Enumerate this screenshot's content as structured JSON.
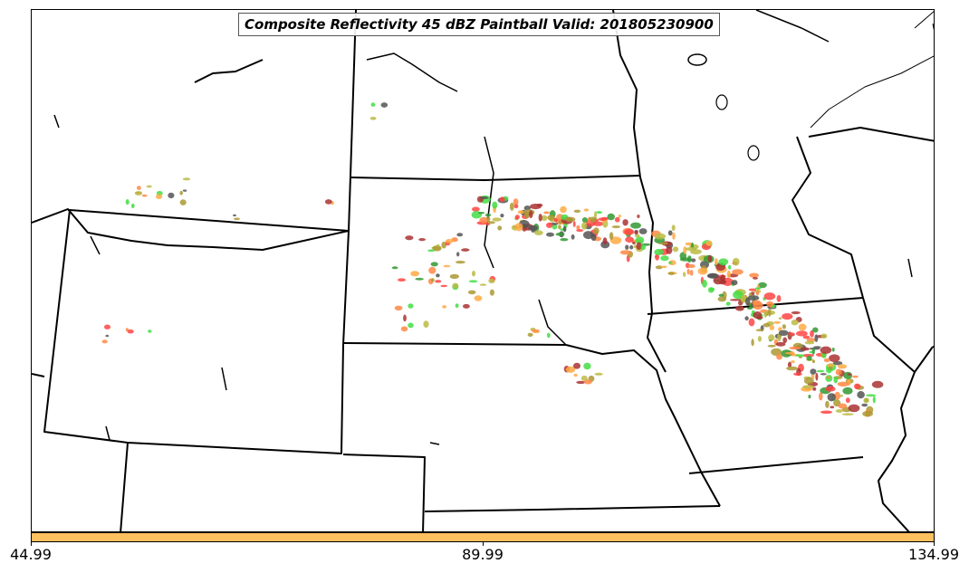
{
  "title": "Composite Reflectivity 45 dBZ Paintball Valid: 201805230900",
  "colorbar": {
    "color": "#ffc060",
    "ticks": [
      "44.99",
      "89.99",
      "134.99"
    ]
  },
  "colors": {
    "map_lines": "#000000",
    "paintball": [
      "#ff4444",
      "#44dd44",
      "#ffaa44",
      "#555555",
      "#aa9933",
      "#aa3333",
      "#339933",
      "#ff8844",
      "#bbbb44"
    ]
  },
  "icons": [
    "state-boundaries",
    "lakes",
    "reflectivity-blobs"
  ]
}
